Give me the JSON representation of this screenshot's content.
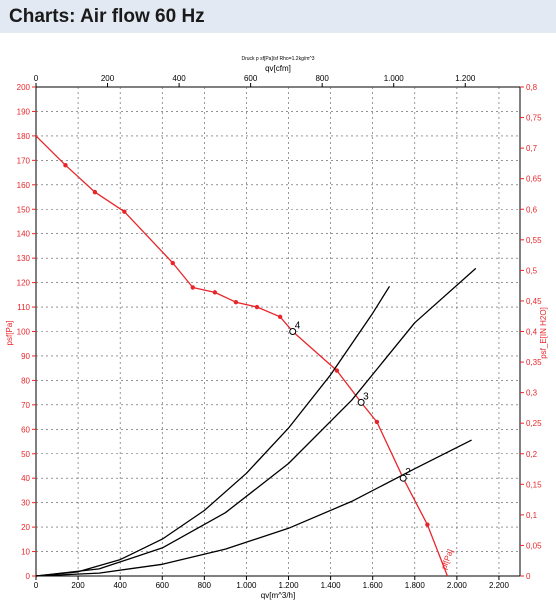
{
  "header": {
    "title": "Charts: Air flow 60 Hz"
  },
  "chart_data": {
    "type": "line",
    "title": "Druck p sf[Pa]/sf Rho=1.2kg/m^3",
    "xlabel": "qv[m^3/h]",
    "x2label": "qv[cfm]",
    "ylabel": "psf[Pa]",
    "y2label": "psf_E[IN H2O]",
    "xlim": [
      0,
      2300
    ],
    "x2lim": [
      0,
      1353
    ],
    "ylim": [
      0,
      200
    ],
    "y2lim": [
      0,
      0.8
    ],
    "grid": true,
    "x_ticks": [
      "0",
      "200",
      "400",
      "600",
      "800",
      "1.000",
      "1.200",
      "1.400",
      "1.600",
      "1.800",
      "2.000",
      "2.200"
    ],
    "x2_ticks": [
      "0",
      "200",
      "400",
      "600",
      "800",
      "1.000",
      "1.200"
    ],
    "y_ticks": [
      "0",
      "10",
      "20",
      "30",
      "40",
      "50",
      "60",
      "70",
      "80",
      "90",
      "100",
      "110",
      "120",
      "130",
      "140",
      "150",
      "160",
      "170",
      "180",
      "190",
      "200"
    ],
    "y2_ticks": [
      "0",
      "0,05",
      "0,1",
      "0,15",
      "0,2",
      "0,25",
      "0,3",
      "0,35",
      "0,4",
      "0,45",
      "0,5",
      "0,55",
      "0,6",
      "0,65",
      "0,7",
      "0,75",
      "0,8"
    ],
    "series": [
      {
        "name": "psf[Pa]",
        "color": "#e8262a",
        "markers": true,
        "x": [
          0,
          140,
          280,
          420,
          650,
          745,
          850,
          950,
          1050,
          1160,
          1220,
          1430,
          1545,
          1620,
          1745,
          1860,
          1955
        ],
        "y": [
          180,
          168,
          157,
          149,
          128,
          118,
          116,
          112,
          110,
          106,
          100,
          84,
          71,
          63,
          40,
          21,
          0
        ]
      },
      {
        "name": "",
        "color": "#000000",
        "markers": false,
        "x": [
          0,
          200,
          400,
          600,
          800,
          1000,
          1200,
          1400,
          1600,
          1680
        ],
        "y": [
          0,
          1.7,
          6.7,
          15.1,
          26.8,
          42,
          60.5,
          82.3,
          107.5,
          118.5
        ]
      },
      {
        "name": "",
        "color": "#000000",
        "markers": false,
        "x": [
          0,
          300,
          600,
          900,
          1200,
          1500,
          1800,
          2090
        ],
        "y": [
          0,
          2.9,
          11.5,
          25.9,
          46,
          71.9,
          103.6,
          125.8
        ]
      },
      {
        "name": "",
        "color": "#000000",
        "markers": false,
        "x": [
          0,
          300,
          600,
          900,
          1200,
          1500,
          1800,
          2070
        ],
        "y": [
          0,
          1.2,
          4.8,
          11,
          19.5,
          30.5,
          43.9,
          55.6
        ]
      }
    ],
    "operating_points": [
      {
        "label": "4",
        "x": 1220,
        "y": 100
      },
      {
        "label": "3",
        "x": 1545,
        "y": 71
      },
      {
        "label": "2",
        "x": 1745,
        "y": 40
      }
    ],
    "annotations": [
      {
        "text": "pf[Pa]"
      }
    ]
  }
}
